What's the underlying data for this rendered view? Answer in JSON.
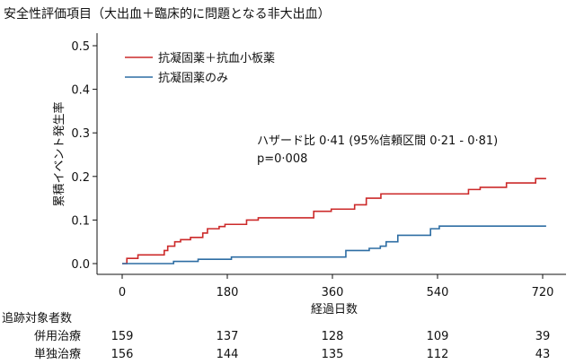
{
  "chart_data": {
    "type": "line",
    "title": "安全性評価項目（大出血＋臨床的に問題となる非大出血）",
    "xlabel": "経過日数",
    "ylabel": "累積イベント発生率",
    "xlim": [
      -15,
      745
    ],
    "ylim": [
      -0.02,
      0.52
    ],
    "xticks": [
      0,
      180,
      360,
      540,
      720
    ],
    "yticks": [
      "0.0",
      "0.1",
      "0.2",
      "0.3",
      "0.4",
      "0.5"
    ],
    "legend_position": "top-left",
    "grid": false,
    "series": [
      {
        "name": "抗凝固薬＋抗血小板薬",
        "color": "#cc2a2a",
        "step_points": [
          [
            0,
            0
          ],
          [
            8,
            0.012
          ],
          [
            27,
            0.02
          ],
          [
            72,
            0.03
          ],
          [
            78,
            0.04
          ],
          [
            90,
            0.05
          ],
          [
            100,
            0.055
          ],
          [
            117,
            0.06
          ],
          [
            138,
            0.07
          ],
          [
            146,
            0.08
          ],
          [
            166,
            0.085
          ],
          [
            176,
            0.09
          ],
          [
            213,
            0.1
          ],
          [
            233,
            0.105
          ],
          [
            328,
            0.12
          ],
          [
            358,
            0.125
          ],
          [
            398,
            0.135
          ],
          [
            418,
            0.15
          ],
          [
            443,
            0.16
          ],
          [
            593,
            0.17
          ],
          [
            613,
            0.175
          ],
          [
            658,
            0.185
          ],
          [
            708,
            0.195
          ],
          [
            726,
            0.195
          ]
        ]
      },
      {
        "name": "抗凝固薬のみ",
        "color": "#2d6da3",
        "step_points": [
          [
            0,
            0
          ],
          [
            88,
            0.005
          ],
          [
            130,
            0.01
          ],
          [
            187,
            0.015
          ],
          [
            383,
            0.03
          ],
          [
            423,
            0.035
          ],
          [
            442,
            0.04
          ],
          [
            452,
            0.05
          ],
          [
            472,
            0.065
          ],
          [
            528,
            0.08
          ],
          [
            543,
            0.086
          ],
          [
            726,
            0.086
          ]
        ]
      }
    ],
    "annotation_lines": [
      "ハザード比 0·41 (95%信頼区間 0·21 - 0·81)",
      "p=0·008"
    ]
  },
  "risk_table": {
    "header": "追跡対象者数",
    "rows": [
      {
        "label": "併用治療",
        "values": [
          "159",
          "137",
          "128",
          "109",
          "39"
        ]
      },
      {
        "label": "単独治療",
        "values": [
          "156",
          "144",
          "135",
          "112",
          "43"
        ]
      }
    ]
  }
}
